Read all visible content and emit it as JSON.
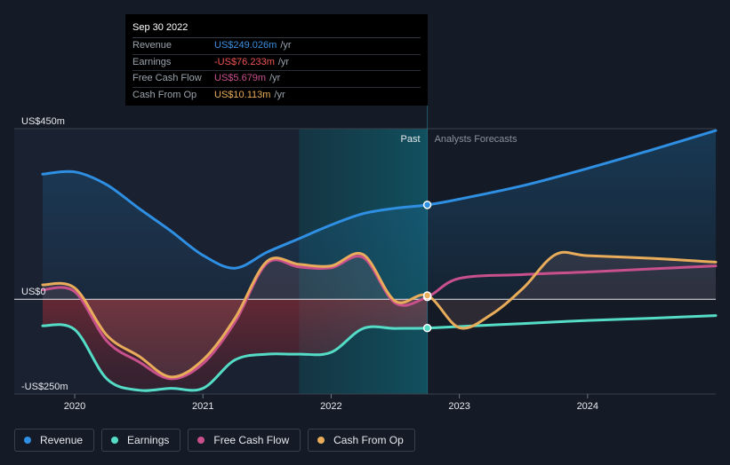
{
  "tooltip": {
    "date": "Sep 30 2022",
    "rows": [
      {
        "label": "Revenue",
        "value": "US$249.026m",
        "unit": "/yr",
        "color": "#3a8fe0"
      },
      {
        "label": "Earnings",
        "value": "-US$76.233m",
        "unit": "/yr",
        "color": "#f05454"
      },
      {
        "label": "Free Cash Flow",
        "value": "US$5.679m",
        "unit": "/yr",
        "color": "#c8508c"
      },
      {
        "label": "Cash From Op",
        "value": "US$10.113m",
        "unit": "/yr",
        "color": "#e8ac5a"
      }
    ]
  },
  "phase_labels": {
    "past": "Past",
    "forecast": "Analysts Forecasts"
  },
  "legend": [
    {
      "label": "Revenue",
      "color": "#2e8fe3"
    },
    {
      "label": "Earnings",
      "color": "#54dcc6"
    },
    {
      "label": "Free Cash Flow",
      "color": "#c8508c"
    },
    {
      "label": "Cash From Op",
      "color": "#e8ac5a"
    }
  ],
  "chart_data": {
    "type": "line",
    "y_tick_labels": [
      "US$450m",
      "US$0",
      "-US$250m"
    ],
    "y_ticks": [
      450,
      0,
      -250
    ],
    "x_tick_labels": [
      "2020",
      "2021",
      "2022",
      "2023",
      "2024"
    ],
    "x_ticks": [
      2020,
      2021,
      2022,
      2023,
      2024
    ],
    "ylim": [
      -250,
      450
    ],
    "xlim": [
      2019.75,
      2025.0
    ],
    "divider_x": 2022.75,
    "highlight_range": [
      2021.75,
      2022.75
    ],
    "series": [
      {
        "name": "Revenue",
        "color": "#2e8fe3",
        "x": [
          2019.75,
          2020.0,
          2020.25,
          2020.5,
          2020.75,
          2021.0,
          2021.25,
          2021.5,
          2021.75,
          2022.0,
          2022.25,
          2022.5,
          2022.75,
          2023.0,
          2023.5,
          2024.0,
          2024.5,
          2025.0
        ],
        "y": [
          330,
          336,
          302,
          240,
          180,
          116,
          82,
          124,
          160,
          196,
          226,
          240,
          249,
          264,
          300,
          345,
          394,
          445
        ]
      },
      {
        "name": "Earnings",
        "color": "#54dcc6",
        "x": [
          2019.75,
          2020.0,
          2020.25,
          2020.5,
          2020.75,
          2021.0,
          2021.25,
          2021.5,
          2021.75,
          2022.0,
          2022.25,
          2022.5,
          2022.75,
          2023.0,
          2023.5,
          2024.0,
          2024.5,
          2025.0
        ],
        "y": [
          -70,
          -80,
          -210,
          -240,
          -235,
          -235,
          -160,
          -145,
          -145,
          -140,
          -77,
          -77,
          -76,
          -72,
          -64,
          -56,
          -50,
          -43
        ]
      },
      {
        "name": "Free Cash Flow",
        "color": "#c8508c",
        "x": [
          2019.75,
          2020.0,
          2020.25,
          2020.5,
          2020.75,
          2021.0,
          2021.25,
          2021.5,
          2021.75,
          2022.0,
          2022.25,
          2022.5,
          2022.75,
          2023.0,
          2023.5,
          2024.0,
          2024.5,
          2025.0
        ],
        "y": [
          25,
          20,
          -110,
          -165,
          -210,
          -170,
          -60,
          95,
          85,
          83,
          110,
          -10,
          6,
          55,
          65,
          72,
          80,
          88
        ]
      },
      {
        "name": "Cash From Op",
        "color": "#e8ac5a",
        "x": [
          2019.75,
          2020.0,
          2020.25,
          2020.5,
          2020.75,
          2021.0,
          2021.25,
          2021.5,
          2021.75,
          2022.0,
          2022.25,
          2022.5,
          2022.75,
          2023.0,
          2023.25,
          2023.5,
          2023.75,
          2024.0,
          2024.5,
          2025.0
        ],
        "y": [
          38,
          30,
          -95,
          -150,
          -205,
          -160,
          -50,
          100,
          92,
          88,
          118,
          -5,
          10,
          -75,
          -40,
          30,
          118,
          115,
          108,
          98
        ]
      }
    ]
  }
}
